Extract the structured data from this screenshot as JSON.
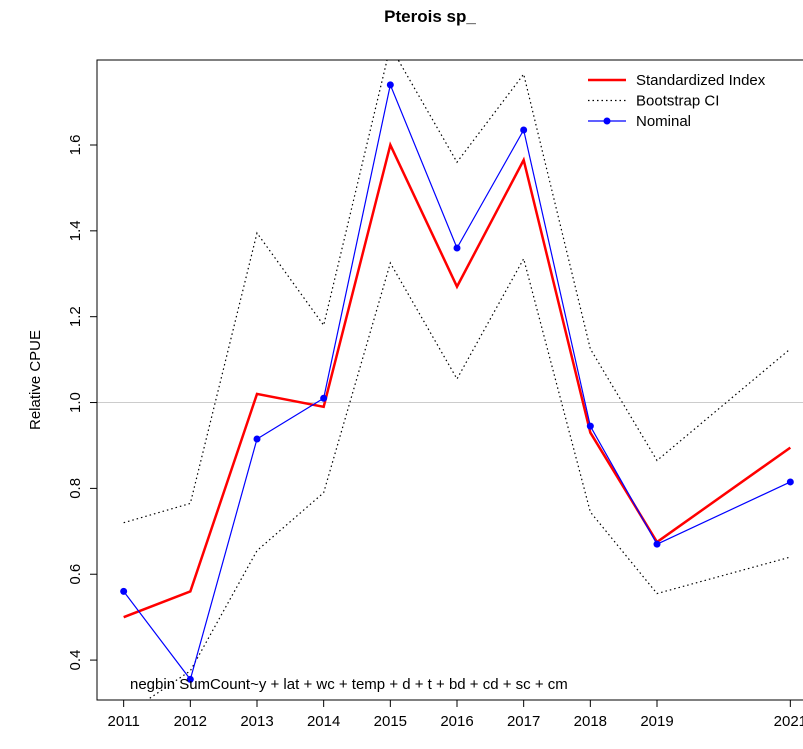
{
  "chart_data": {
    "type": "line",
    "title": "Pterois sp_",
    "ylabel": "Relative CPUE",
    "annotation": "negbin SumCount~y + lat + wc + temp + d + t + bd + cd + sc + cm",
    "x": [
      2011,
      2012,
      2013,
      2014,
      2015,
      2016,
      2017,
      2018,
      2019,
      2021
    ],
    "xlim": [
      2010.6,
      2021.4
    ],
    "xticks": [
      2011,
      2012,
      2013,
      2014,
      2015,
      2016,
      2017,
      2018,
      2019,
      2021
    ],
    "ylim": [
      0.307,
      1.798
    ],
    "yticks": [
      0.4,
      0.6,
      0.8,
      {
        "value": 1,
        "label": "1.0"
      },
      1.2,
      1.4,
      1.6
    ],
    "hline": 1,
    "hline_color": "#cccccc",
    "legend": "top-right",
    "series": [
      {
        "name": "Standardized Index",
        "color": "#ff0000",
        "style": "solid",
        "values": [
          0.5,
          0.56,
          1.02,
          0.99,
          1.6,
          1.27,
          1.565,
          0.93,
          0.675,
          0.895
        ]
      },
      {
        "name": "Bootstrap CI",
        "color": "#000000",
        "style": "dotted",
        "upper": [
          0.72,
          0.765,
          1.395,
          1.18,
          1.83,
          1.56,
          1.765,
          1.125,
          0.865,
          1.125
        ],
        "lower": [
          0.27,
          0.375,
          0.655,
          0.79,
          1.325,
          1.055,
          1.335,
          0.745,
          0.555,
          0.64
        ]
      },
      {
        "name": "Nominal",
        "color": "#0000ff",
        "style": "points",
        "values": [
          0.56,
          0.355,
          0.915,
          1.01,
          1.74,
          1.36,
          1.635,
          0.945,
          0.67,
          0.815
        ]
      }
    ]
  }
}
